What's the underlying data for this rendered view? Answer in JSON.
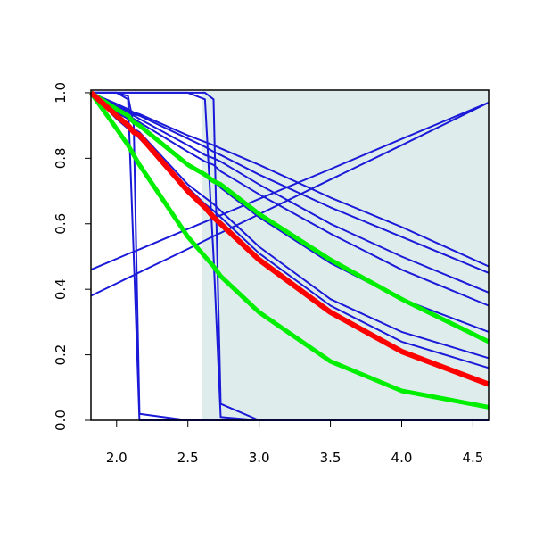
{
  "chart_data": {
    "type": "line",
    "xlim": [
      1.82,
      4.61
    ],
    "ylim": [
      0,
      1.008
    ],
    "xticks": [
      {
        "value": 2.0,
        "label": "2.0"
      },
      {
        "value": 2.5,
        "label": "2.5"
      },
      {
        "value": 3.0,
        "label": "3.0"
      },
      {
        "value": 3.5,
        "label": "3.5"
      },
      {
        "value": 4.0,
        "label": "4.0"
      },
      {
        "value": 4.5,
        "label": "4.5"
      }
    ],
    "yticks": [
      {
        "value": 0,
        "label": "0.0"
      },
      {
        "value": 0.2,
        "label": "0.2"
      },
      {
        "value": 0.4,
        "label": "0.4"
      },
      {
        "value": 0.6,
        "label": "0.6"
      },
      {
        "value": 0.8,
        "label": "0.8"
      },
      {
        "value": 1.0,
        "label": "1.0"
      }
    ],
    "shade_from": 2.6,
    "shade_color": "#deecec",
    "x": [
      1.82,
      2.0,
      2.08,
      2.12,
      2.16,
      2.5,
      2.62,
      2.68,
      2.73,
      3.0,
      3.5,
      4.0,
      4.61
    ],
    "series": [
      {
        "color": "#1a1ad8",
        "width": 2,
        "values": [
          1,
          1,
          0.98,
          0.5,
          0,
          0,
          0,
          0,
          0,
          0,
          0,
          0,
          0
        ]
      },
      {
        "color": "#1a1ad8",
        "width": 2,
        "values": [
          1,
          1,
          0.99,
          0.9,
          0.02,
          0,
          0,
          0,
          0,
          0,
          0,
          0,
          0
        ]
      },
      {
        "color": "#1a1ad8",
        "width": 2,
        "values": [
          1,
          1,
          1,
          1,
          1,
          1,
          0.98,
          0.5,
          0.01,
          0,
          0,
          0,
          0
        ]
      },
      {
        "color": "#1a1ad8",
        "width": 2,
        "values": [
          1,
          1,
          1,
          1,
          1,
          1,
          1,
          0.98,
          0.05,
          0,
          0,
          0,
          0
        ]
      },
      {
        "color": "#1a1ad8",
        "width": 2,
        "values": [
          0.46,
          0.493,
          0.508,
          0.515,
          0.522,
          0.584,
          0.606,
          0.617,
          0.626,
          0.676,
          0.767,
          0.859,
          0.97
        ]
      },
      {
        "color": "#1a1ad8",
        "width": 2,
        "values": [
          0.38,
          0.418,
          0.435,
          0.443,
          0.452,
          0.523,
          0.549,
          0.562,
          0.572,
          0.629,
          0.735,
          0.84,
          0.97
        ]
      },
      {
        "color": "#1a1ad8",
        "width": 2,
        "values": [
          1,
          0.966,
          0.95,
          0.94,
          0.935,
          0.87,
          0.85,
          0.84,
          0.83,
          0.78,
          0.68,
          0.59,
          0.47
        ]
      },
      {
        "color": "#1a1ad8",
        "width": 2,
        "values": [
          1,
          0.96,
          0.945,
          0.935,
          0.93,
          0.86,
          0.835,
          0.82,
          0.81,
          0.75,
          0.65,
          0.56,
          0.45
        ]
      },
      {
        "color": "#1a1ad8",
        "width": 2,
        "values": [
          1,
          0.955,
          0.94,
          0.93,
          0.92,
          0.84,
          0.81,
          0.8,
          0.79,
          0.72,
          0.6,
          0.5,
          0.39
        ]
      },
      {
        "color": "#1a1ad8",
        "width": 2,
        "values": [
          1,
          0.95,
          0.93,
          0.92,
          0.91,
          0.82,
          0.79,
          0.78,
          0.76,
          0.69,
          0.57,
          0.46,
          0.35
        ]
      },
      {
        "color": "#1a1ad8",
        "width": 2,
        "values": [
          1,
          0.94,
          0.92,
          0.91,
          0.9,
          0.78,
          0.75,
          0.73,
          0.71,
          0.62,
          0.48,
          0.37,
          0.27
        ]
      },
      {
        "color": "#1a1ad8",
        "width": 2,
        "values": [
          1,
          0.93,
          0.9,
          0.89,
          0.88,
          0.72,
          0.68,
          0.66,
          0.64,
          0.53,
          0.37,
          0.27,
          0.19
        ]
      },
      {
        "color": "#1a1ad8",
        "width": 2,
        "values": [
          1,
          0.92,
          0.89,
          0.88,
          0.86,
          0.71,
          0.66,
          0.64,
          0.62,
          0.51,
          0.35,
          0.24,
          0.16
        ]
      },
      {
        "color": "#00ee00",
        "width": 5,
        "values": [
          1,
          0.89,
          0.84,
          0.81,
          0.78,
          0.56,
          0.5,
          0.47,
          0.44,
          0.33,
          0.18,
          0.09,
          0.04
        ]
      },
      {
        "color": "#00ee00",
        "width": 5,
        "values": [
          1,
          0.95,
          0.93,
          0.91,
          0.9,
          0.78,
          0.75,
          0.73,
          0.72,
          0.63,
          0.49,
          0.37,
          0.24
        ]
      },
      {
        "color": "#ff0000",
        "width": 6,
        "values": [
          1,
          0.93,
          0.9,
          0.88,
          0.87,
          0.7,
          0.65,
          0.62,
          0.6,
          0.49,
          0.33,
          0.21,
          0.11
        ]
      }
    ]
  }
}
